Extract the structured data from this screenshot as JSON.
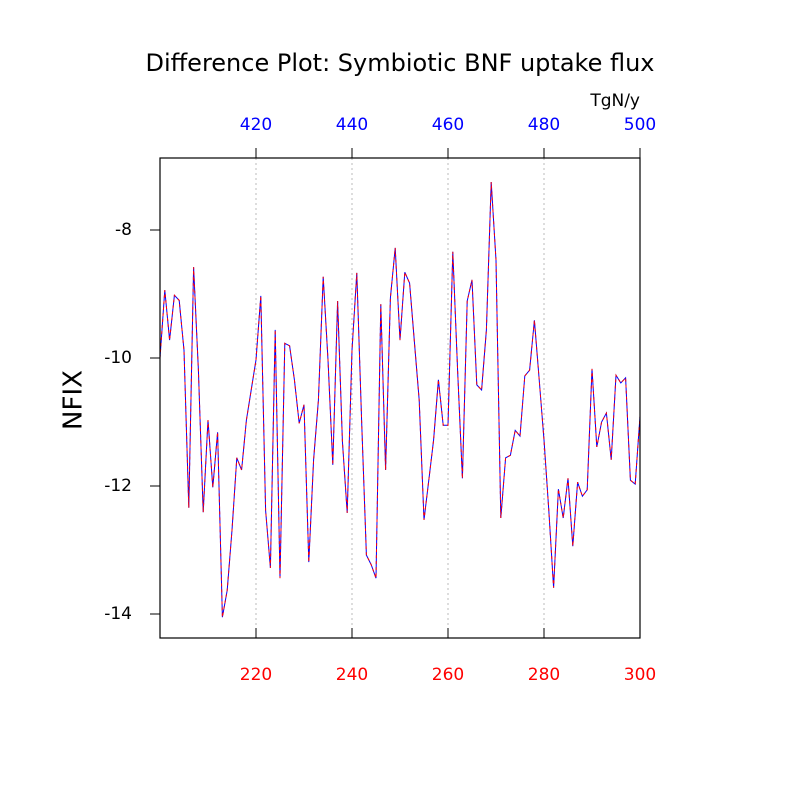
{
  "chart_data": {
    "type": "line",
    "title": "Difference Plot: Symbiotic BNF uptake flux",
    "units": "TgN/y",
    "y_label": "NFIX",
    "xlim": [
      200,
      300
    ],
    "xticks": [
      220,
      240,
      260,
      280,
      300
    ],
    "xtick_color": "red",
    "x2lim": [
      400,
      500
    ],
    "x2ticks": [
      420,
      440,
      460,
      480,
      500
    ],
    "x2tick_color": "blue",
    "ylim": [
      -14.375,
      -6.875
    ],
    "yticks": [
      -14,
      -12,
      -10,
      -8
    ],
    "grid": true,
    "series": [
      {
        "color": "blue",
        "axis": "x2",
        "x": [
          400,
          401,
          402,
          403,
          404,
          405,
          406,
          407,
          408,
          409,
          410,
          411,
          412,
          413,
          414,
          415,
          416,
          417,
          418,
          419,
          420,
          421,
          422,
          423,
          424,
          425,
          426,
          427,
          428,
          429,
          430,
          431,
          432,
          433,
          434,
          435,
          436,
          437,
          438,
          439,
          440,
          441,
          442,
          443,
          444,
          445,
          446,
          447,
          448,
          449,
          450,
          451,
          452,
          453,
          454,
          455,
          456,
          457,
          458,
          459,
          460,
          461,
          462,
          463,
          464,
          465,
          466,
          467,
          468,
          469,
          470,
          471,
          472,
          473,
          474,
          475,
          476,
          477,
          478,
          479,
          480,
          481,
          482,
          483,
          484,
          485,
          486,
          487,
          488,
          489,
          490,
          491,
          492,
          493,
          494,
          495,
          496,
          497,
          498,
          499,
          500
        ],
        "values": [
          -10.0,
          -8.94,
          -9.72,
          -9.02,
          -9.1,
          -9.88,
          -12.34,
          -8.58,
          -10.19,
          -12.41,
          -10.97,
          -12.02,
          -11.16,
          -14.05,
          -13.63,
          -12.69,
          -11.56,
          -11.75,
          -10.97,
          -10.5,
          -10.03,
          -9.03,
          -12.38,
          -13.28,
          -9.56,
          -13.44,
          -9.77,
          -9.81,
          -10.34,
          -11.02,
          -10.73,
          -13.19,
          -11.59,
          -10.66,
          -8.73,
          -10.03,
          -11.67,
          -9.11,
          -11.3,
          -12.42,
          -9.88,
          -8.67,
          -10.97,
          -13.08,
          -13.23,
          -13.44,
          -9.16,
          -11.75,
          -9.06,
          -8.28,
          -9.72,
          -8.66,
          -8.83,
          -9.75,
          -10.66,
          -12.53,
          -11.91,
          -11.28,
          -10.34,
          -11.05,
          -11.05,
          -8.34,
          -10.19,
          -11.88,
          -9.11,
          -8.78,
          -10.42,
          -10.5,
          -9.56,
          -7.25,
          -8.47,
          -12.5,
          -11.56,
          -11.52,
          -11.13,
          -11.22,
          -10.28,
          -10.19,
          -9.41,
          -10.34,
          -11.28,
          -12.38,
          -13.59,
          -12.05,
          -12.5,
          -11.88,
          -12.94,
          -11.94,
          -12.16,
          -12.06,
          -10.17,
          -11.39,
          -11.0,
          -10.86,
          -11.59,
          -10.27,
          -10.39,
          -10.31,
          -11.91,
          -11.97,
          -10.91
        ]
      },
      {
        "color": "red",
        "axis": "x",
        "dashed": true,
        "x": [
          200,
          201,
          202,
          203,
          204,
          205,
          206,
          207,
          208,
          209,
          210,
          211,
          212,
          213,
          214,
          215,
          216,
          217,
          218,
          219,
          220,
          221,
          222,
          223,
          224,
          225,
          226,
          227,
          228,
          229,
          230,
          231,
          232,
          233,
          234,
          235,
          236,
          237,
          238,
          239,
          240,
          241,
          242,
          243,
          244,
          245,
          246,
          247,
          248,
          249,
          250,
          251,
          252,
          253,
          254,
          255,
          256,
          257,
          258,
          259,
          260,
          261,
          262,
          263,
          264,
          265,
          266,
          267,
          268,
          269,
          270,
          271,
          272,
          273,
          274,
          275,
          276,
          277,
          278,
          279,
          280,
          281,
          282,
          283,
          284,
          285,
          286,
          287,
          288,
          289,
          290,
          291,
          292,
          293,
          294,
          295,
          296,
          297,
          298,
          299,
          300
        ],
        "values": [
          -10.0,
          -8.94,
          -9.72,
          -9.02,
          -9.1,
          -9.88,
          -12.34,
          -8.58,
          -10.19,
          -12.41,
          -10.97,
          -12.02,
          -11.16,
          -14.05,
          -13.63,
          -12.69,
          -11.56,
          -11.75,
          -10.97,
          -10.5,
          -10.03,
          -9.03,
          -12.38,
          -13.28,
          -9.56,
          -13.44,
          -9.77,
          -9.81,
          -10.34,
          -11.02,
          -10.73,
          -13.19,
          -11.59,
          -10.66,
          -8.73,
          -10.03,
          -11.67,
          -9.11,
          -11.3,
          -12.42,
          -9.88,
          -8.67,
          -10.97,
          -13.08,
          -13.23,
          -13.44,
          -9.16,
          -11.75,
          -9.06,
          -8.28,
          -9.72,
          -8.66,
          -8.83,
          -9.75,
          -10.66,
          -12.53,
          -11.91,
          -11.28,
          -10.34,
          -11.05,
          -11.05,
          -8.34,
          -10.19,
          -11.88,
          -9.11,
          -8.78,
          -10.42,
          -10.5,
          -9.56,
          -7.25,
          -8.47,
          -12.5,
          -11.56,
          -11.52,
          -11.13,
          -11.22,
          -10.28,
          -10.19,
          -9.41,
          -10.34,
          -11.28,
          -12.38,
          -13.59,
          -12.05,
          -12.5,
          -11.88,
          -12.94,
          -11.94,
          -12.16,
          -12.06,
          -10.17,
          -11.39,
          -11.0,
          -10.86,
          -11.59,
          -10.27,
          -10.39,
          -10.31,
          -11.91,
          -11.97,
          -10.91
        ]
      }
    ]
  }
}
